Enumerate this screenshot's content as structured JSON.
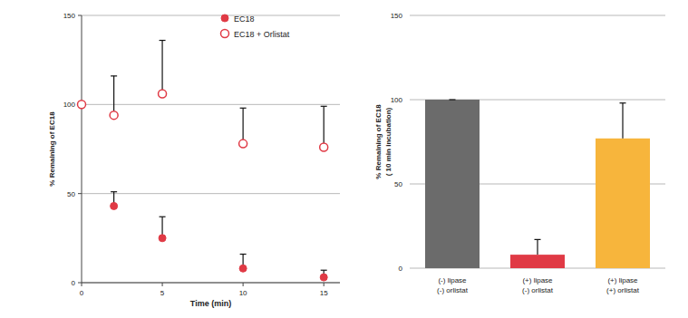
{
  "chart_data": [
    {
      "type": "scatter",
      "xlabel": "Time (min)",
      "ylabel": "% Remaining of EC18",
      "xlim": [
        0,
        16
      ],
      "xticks": [
        0,
        5,
        10,
        15
      ],
      "ylim": [
        0,
        150
      ],
      "yticks": [
        0,
        50,
        100,
        150
      ],
      "grid": true,
      "legend": "upper right",
      "series": [
        {
          "name": "EC18",
          "color": "#e03a45",
          "marker": "filled",
          "x": [
            2,
            5,
            10,
            15
          ],
          "values": [
            43,
            25,
            8,
            3
          ],
          "errors": [
            8,
            12,
            8,
            4
          ]
        },
        {
          "name": "EC18 + Orlistat",
          "color": "#e03a45",
          "marker": "open",
          "x": [
            0,
            2,
            5,
            10,
            15
          ],
          "values": [
            100,
            94,
            106,
            78,
            76
          ],
          "errors": [
            0,
            22,
            30,
            20,
            23
          ]
        }
      ]
    },
    {
      "type": "bar",
      "ylabel": "% Remaining of EC18\n( 10 min incubation)",
      "categories": [
        "(-) lipase\n(-) orlistat",
        "(+) lipase\n(-) orlistat",
        "(+) lipase\n(+) orlistat"
      ],
      "values": [
        100,
        8,
        77
      ],
      "errors": [
        0,
        9,
        21
      ],
      "colors": [
        "#6b6b6b",
        "#e03a45",
        "#f7b53c"
      ],
      "ylim": [
        0,
        150
      ],
      "yticks": [
        0,
        50,
        100,
        150
      ],
      "grid": true
    }
  ]
}
